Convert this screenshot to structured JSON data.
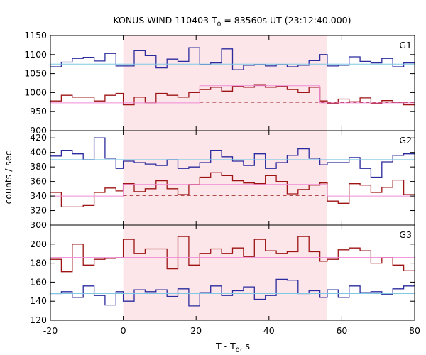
{
  "chart_data": {
    "type": "line",
    "title": "KONUS-WIND 110403 T",
    "title_sub": "0",
    "title_rest": " = 83560s UT (23:12:40.000)",
    "xlabel": "T - T",
    "xlabel_sub": "0",
    "xlabel_rest": ", s",
    "ylabel": "counts / sec",
    "xlim": [
      -20,
      80
    ],
    "x_ticks": [
      "-20",
      "0",
      "20",
      "40",
      "60",
      "80"
    ],
    "x_tick_values": [
      -20,
      0,
      20,
      40,
      60,
      80
    ],
    "highlight_interval": [
      0,
      56
    ],
    "colors": {
      "blue": "#2b2b9e",
      "red": "#9e1414",
      "light_blue": "#7ec8e3",
      "pink": "#f08ad6",
      "shade": "#fde6ea"
    },
    "panels": [
      {
        "name": "G1",
        "ylim": [
          900,
          1150
        ],
        "y_ticks": [
          "900",
          "950",
          "1000",
          "1050",
          "1100",
          "1150"
        ],
        "y_tick_values": [
          900,
          950,
          1000,
          1050,
          1100,
          1150
        ],
        "series": [
          {
            "color": "blue",
            "style": "step",
            "x": [
              -20,
              -17,
              -14,
              -11,
              -8,
              -5,
              -2,
              0,
              3,
              6,
              9,
              12,
              15,
              18,
              21,
              24,
              27,
              30,
              33,
              36,
              39,
              42,
              45,
              48,
              51,
              54,
              56,
              59,
              62,
              65,
              68,
              71,
              74,
              77,
              80
            ],
            "y": [
              1068,
              1080,
              1090,
              1093,
              1083,
              1103,
              1070,
              1070,
              1110,
              1097,
              1065,
              1088,
              1082,
              1118,
              1074,
              1078,
              1115,
              1060,
              1072,
              1074,
              1070,
              1073,
              1068,
              1072,
              1084,
              1100,
              1070,
              1072,
              1094,
              1082,
              1078,
              1090,
              1068,
              1078,
              1078
            ]
          },
          {
            "color": "red",
            "style": "step",
            "x": [
              -20,
              -17,
              -14,
              -11,
              -8,
              -5,
              -2,
              0,
              3,
              6,
              9,
              12,
              15,
              18,
              21,
              24,
              27,
              30,
              33,
              36,
              39,
              42,
              45,
              48,
              51,
              54,
              56,
              59,
              62,
              65,
              68,
              71,
              74,
              77,
              80
            ],
            "y": [
              978,
              993,
              988,
              988,
              978,
              993,
              998,
              968,
              988,
              973,
              998,
              993,
              988,
              1000,
              1008,
              1014,
              1004,
              1016,
              1014,
              1019,
              1014,
              1016,
              1008,
              1000,
              1014,
              978,
              972,
              983,
              976,
              986,
              972,
              979,
              974,
              968,
              968
            ]
          },
          {
            "color": "light_blue",
            "style": "line",
            "x": [
              -20,
              80
            ],
            "y": [
              1075,
              1075
            ]
          },
          {
            "color": "pink",
            "style": "step",
            "x": [
              -20,
              21,
              54,
              80
            ],
            "y": [
              973,
              1018,
              973,
              973
            ]
          },
          {
            "color": "red",
            "style": "dashed",
            "x": [
              21,
              80
            ],
            "y": [
              975,
              975
            ]
          }
        ]
      },
      {
        "name": "G2",
        "ylim": [
          300,
          430
        ],
        "y_ticks": [
          "300",
          "320",
          "340",
          "360",
          "380",
          "400",
          "420"
        ],
        "y_tick_values": [
          300,
          320,
          340,
          360,
          380,
          400,
          420
        ],
        "series": [
          {
            "color": "blue",
            "style": "step",
            "x": [
              -20,
              -17,
              -14,
              -11,
              -8,
              -5,
              -2,
              0,
              3,
              6,
              9,
              12,
              15,
              18,
              21,
              24,
              27,
              30,
              33,
              36,
              39,
              42,
              45,
              48,
              51,
              54,
              56,
              59,
              62,
              65,
              68,
              71,
              74,
              77,
              80
            ],
            "y": [
              395,
              403,
              398,
              390,
              420,
              392,
              378,
              388,
              386,
              384,
              382,
              390,
              378,
              380,
              386,
              403,
              394,
              388,
              382,
              398,
              378,
              386,
              396,
              405,
              392,
              383,
              386,
              386,
              393,
              378,
              366,
              387,
              396,
              398,
              402
            ]
          },
          {
            "color": "red",
            "style": "step",
            "x": [
              -20,
              -17,
              -14,
              -11,
              -8,
              -5,
              -2,
              0,
              3,
              6,
              9,
              12,
              15,
              18,
              21,
              24,
              27,
              30,
              33,
              36,
              39,
              42,
              45,
              48,
              51,
              54,
              56,
              59,
              62,
              65,
              68,
              71,
              74,
              77,
              80
            ],
            "y": [
              345,
              325,
              325,
              327,
              345,
              351,
              347,
              357,
              346,
              350,
              361,
              350,
              342,
              356,
              366,
              372,
              368,
              361,
              358,
              357,
              368,
              360,
              343,
              349,
              355,
              358,
              333,
              330,
              357,
              355,
              345,
              352,
              362,
              342,
              346
            ]
          },
          {
            "color": "light_blue",
            "style": "line",
            "x": [
              -20,
              80
            ],
            "y": [
              390,
              390
            ]
          },
          {
            "color": "pink",
            "style": "step",
            "x": [
              -20,
              0,
              56,
              80
            ],
            "y": [
              340,
              356,
              340,
              340
            ]
          },
          {
            "color": "red",
            "style": "dashed",
            "x": [
              0,
              56
            ],
            "y": [
              341,
              341
            ]
          }
        ]
      },
      {
        "name": "G3",
        "ylim": [
          120,
          220
        ],
        "y_ticks": [
          "120",
          "140",
          "160",
          "180",
          "200"
        ],
        "y_tick_values": [
          120,
          140,
          160,
          180,
          200
        ],
        "series": [
          {
            "color": "blue",
            "style": "step",
            "x": [
              -20,
              -17,
              -14,
              -11,
              -8,
              -5,
              -2,
              0,
              3,
              6,
              9,
              12,
              15,
              18,
              21,
              24,
              27,
              30,
              33,
              36,
              39,
              42,
              45,
              48,
              51,
              54,
              56,
              59,
              62,
              65,
              68,
              71,
              74,
              77,
              80
            ],
            "y": [
              148,
              150,
              144,
              156,
              146,
              136,
              150,
              140,
              152,
              150,
              152,
              145,
              153,
              135,
              149,
              156,
              146,
              151,
              155,
              142,
              146,
              163,
              162,
              148,
              151,
              144,
              152,
              144,
              156,
              149,
              150,
              147,
              153,
              156,
              156
            ]
          },
          {
            "color": "red",
            "style": "step",
            "x": [
              -20,
              -17,
              -14,
              -11,
              -8,
              -5,
              -2,
              0,
              3,
              6,
              9,
              12,
              15,
              18,
              21,
              24,
              27,
              30,
              33,
              36,
              39,
              42,
              45,
              48,
              51,
              54,
              56,
              59,
              62,
              65,
              68,
              71,
              74,
              77,
              80
            ],
            "y": [
              184,
              171,
              200,
              178,
              184,
              185,
              186,
              205,
              190,
              195,
              195,
              174,
              208,
              178,
              190,
              195,
              190,
              196,
              187,
              205,
              193,
              190,
              192,
              208,
              192,
              182,
              184,
              194,
              196,
              193,
              180,
              186,
              178,
              172,
              172
            ]
          },
          {
            "color": "light_blue",
            "style": "line",
            "x": [
              -20,
              80
            ],
            "y": [
              148,
              148
            ]
          },
          {
            "color": "pink",
            "style": "line",
            "x": [
              -20,
              80
            ],
            "y": [
              186,
              186
            ]
          }
        ]
      }
    ]
  }
}
